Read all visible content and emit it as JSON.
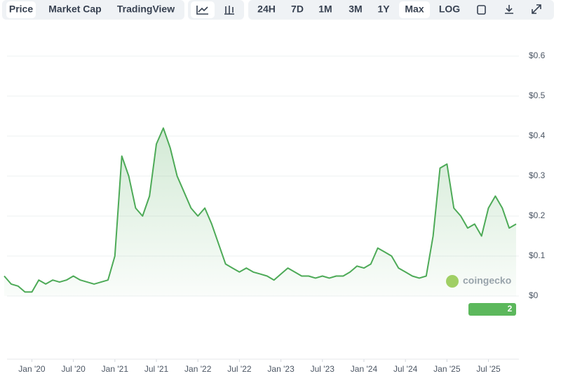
{
  "toolbar": {
    "tabs": [
      "Price",
      "Market Cap",
      "TradingView"
    ],
    "selected_tab": 0,
    "ranges": [
      "24H",
      "7D",
      "1M",
      "3M",
      "1Y",
      "Max",
      "LOG"
    ],
    "selected_range": 5
  },
  "watermark": "coingecko",
  "badge": "2",
  "chart_data": {
    "type": "line",
    "x": [
      "2019-09",
      "2019-10",
      "2019-11",
      "2019-12",
      "2020-01",
      "2020-02",
      "2020-03",
      "2020-04",
      "2020-05",
      "2020-06",
      "2020-07",
      "2020-08",
      "2020-09",
      "2020-10",
      "2020-11",
      "2020-12",
      "2021-01",
      "2021-02",
      "2021-03",
      "2021-04",
      "2021-05",
      "2021-06",
      "2021-07",
      "2021-08",
      "2021-09",
      "2021-10",
      "2021-11",
      "2021-12",
      "2022-01",
      "2022-02",
      "2022-03",
      "2022-04",
      "2022-05",
      "2022-06",
      "2022-07",
      "2022-08",
      "2022-09",
      "2022-10",
      "2022-11",
      "2022-12",
      "2023-01",
      "2023-02",
      "2023-03",
      "2023-04",
      "2023-05",
      "2023-06",
      "2023-07",
      "2023-08",
      "2023-09",
      "2023-10",
      "2023-11",
      "2023-12",
      "2024-01",
      "2024-02",
      "2024-03",
      "2024-04",
      "2024-05",
      "2024-06",
      "2024-07",
      "2024-08",
      "2024-09",
      "2024-10",
      "2024-11",
      "2024-12",
      "2025-01",
      "2025-02",
      "2025-03",
      "2025-04",
      "2025-05",
      "2025-06",
      "2025-07",
      "2025-08",
      "2025-09",
      "2025-10",
      "2025-11"
    ],
    "series": [
      {
        "name": "Price",
        "color": "#4daa57",
        "values": [
          0.05,
          0.03,
          0.025,
          0.01,
          0.01,
          0.04,
          0.03,
          0.04,
          0.035,
          0.04,
          0.05,
          0.04,
          0.035,
          0.03,
          0.035,
          0.04,
          0.1,
          0.35,
          0.3,
          0.22,
          0.2,
          0.25,
          0.38,
          0.42,
          0.37,
          0.3,
          0.26,
          0.22,
          0.2,
          0.22,
          0.18,
          0.13,
          0.08,
          0.07,
          0.06,
          0.07,
          0.06,
          0.055,
          0.05,
          0.04,
          0.055,
          0.07,
          0.06,
          0.05,
          0.05,
          0.045,
          0.05,
          0.045,
          0.05,
          0.05,
          0.06,
          0.075,
          0.07,
          0.08,
          0.12,
          0.11,
          0.1,
          0.07,
          0.06,
          0.05,
          0.045,
          0.05,
          0.15,
          0.32,
          0.33,
          0.22,
          0.2,
          0.17,
          0.18,
          0.15,
          0.22,
          0.25,
          0.22,
          0.17,
          0.18
        ]
      }
    ],
    "xlim": [
      "2019-09",
      "2025-11"
    ],
    "xticks": [
      {
        "value": "2020-01",
        "label": "Jan '20"
      },
      {
        "value": "2020-07",
        "label": "Jul '20"
      },
      {
        "value": "2021-01",
        "label": "Jan '21"
      },
      {
        "value": "2021-07",
        "label": "Jul '21"
      },
      {
        "value": "2022-01",
        "label": "Jan '22"
      },
      {
        "value": "2022-07",
        "label": "Jul '22"
      },
      {
        "value": "2023-01",
        "label": "Jan '23"
      },
      {
        "value": "2023-07",
        "label": "Jul '23"
      },
      {
        "value": "2024-01",
        "label": "Jan '24"
      },
      {
        "value": "2024-07",
        "label": "Jul '24"
      },
      {
        "value": "2025-01",
        "label": "Jan '25"
      },
      {
        "value": "2025-07",
        "label": "Jul '25"
      }
    ],
    "ylim": [
      0,
      0.6
    ],
    "yticks": [
      {
        "value": 0,
        "label": "$0"
      },
      {
        "value": 0.1,
        "label": "$0.1"
      },
      {
        "value": 0.2,
        "label": "$0.2"
      },
      {
        "value": 0.3,
        "label": "$0.3"
      },
      {
        "value": 0.4,
        "label": "$0.4"
      },
      {
        "value": 0.5,
        "label": "$0.5"
      },
      {
        "value": 0.6,
        "label": "$0.6"
      }
    ],
    "grid": true
  }
}
